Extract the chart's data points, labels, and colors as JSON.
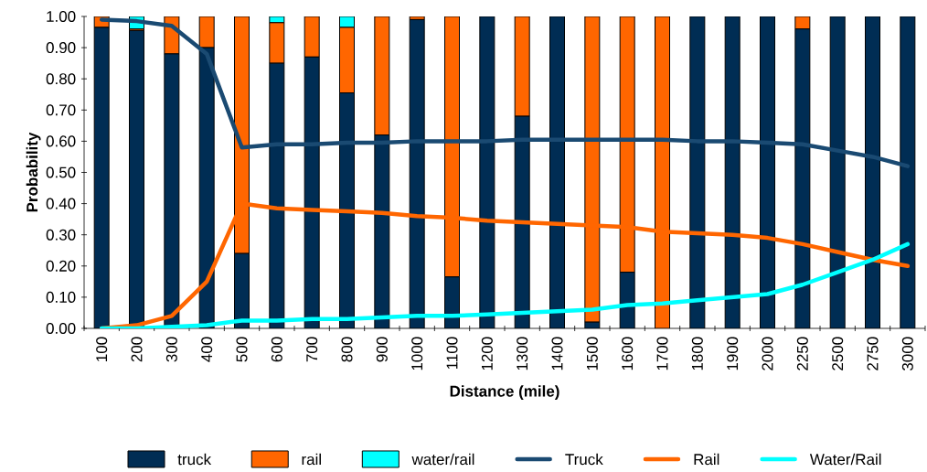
{
  "chart_data": {
    "type": "bar",
    "stacked": true,
    "xlabel": "Distance (mile)",
    "ylabel": "Probability",
    "categories": [
      "100",
      "200",
      "300",
      "400",
      "500",
      "600",
      "700",
      "800",
      "900",
      "1000",
      "1100",
      "1200",
      "1300",
      "1400",
      "1500",
      "1600",
      "1700",
      "1800",
      "1900",
      "2000",
      "2250",
      "2500",
      "2750",
      "3000"
    ],
    "series": [
      {
        "name": "truck",
        "color": "#002d54",
        "values": [
          0.965,
          0.955,
          0.88,
          0.9,
          0.24,
          0.85,
          0.87,
          0.755,
          0.62,
          0.99,
          0.165,
          1.0,
          0.68,
          1.0,
          0.02,
          0.18,
          0.0,
          1.0,
          1.0,
          1.0,
          0.96,
          1.0,
          1.0,
          1.0
        ]
      },
      {
        "name": "rail",
        "color": "#ff6600",
        "values": [
          0.035,
          0.005,
          0.12,
          0.1,
          0.76,
          0.13,
          0.13,
          0.21,
          0.38,
          0.01,
          0.835,
          0.0,
          0.32,
          0.0,
          0.98,
          0.82,
          1.0,
          0.0,
          0.0,
          0.0,
          0.04,
          0.0,
          0.0,
          0.0
        ]
      },
      {
        "name": "water/rail",
        "color": "#00ffff",
        "values": [
          0.0,
          0.04,
          0.0,
          0.0,
          0.0,
          0.02,
          0.0,
          0.035,
          0.0,
          0.0,
          0.0,
          0.0,
          0.0,
          0.0,
          0.0,
          0.0,
          0.0,
          0.0,
          0.0,
          0.0,
          0.0,
          0.0,
          0.0,
          0.0
        ]
      },
      {
        "name": "Truck",
        "type": "line",
        "color": "#1a4a72",
        "values": [
          0.99,
          0.985,
          0.97,
          0.88,
          0.58,
          0.59,
          0.59,
          0.595,
          0.595,
          0.6,
          0.6,
          0.6,
          0.605,
          0.605,
          0.605,
          0.605,
          0.605,
          0.6,
          0.6,
          0.595,
          0.59,
          0.57,
          0.55,
          0.52
        ]
      },
      {
        "name": "Rail",
        "type": "line",
        "color": "#ff6600",
        "values": [
          0.0,
          0.01,
          0.04,
          0.15,
          0.4,
          0.385,
          0.38,
          0.375,
          0.37,
          0.36,
          0.355,
          0.345,
          0.34,
          0.335,
          0.33,
          0.325,
          0.31,
          0.305,
          0.3,
          0.29,
          0.27,
          0.245,
          0.22,
          0.2
        ]
      },
      {
        "name": "Water/Rail",
        "type": "line",
        "color": "#00ffff",
        "values": [
          0.0,
          0.0,
          0.005,
          0.01,
          0.025,
          0.025,
          0.03,
          0.03,
          0.035,
          0.04,
          0.04,
          0.045,
          0.05,
          0.055,
          0.06,
          0.075,
          0.08,
          0.09,
          0.1,
          0.11,
          0.14,
          0.18,
          0.22,
          0.27
        ]
      }
    ],
    "ylim": [
      0,
      1
    ],
    "yticks": [
      {
        "value": 0,
        "label": "0.00"
      },
      {
        "value": 0.1,
        "label": "0.10"
      },
      {
        "value": 0.2,
        "label": "0.20"
      },
      {
        "value": 0.3,
        "label": "0.30"
      },
      {
        "value": 0.4,
        "label": "0.40"
      },
      {
        "value": 0.5,
        "label": "0.50"
      },
      {
        "value": 0.6,
        "label": "0.60"
      },
      {
        "value": 0.7,
        "label": "0.70"
      },
      {
        "value": 0.8,
        "label": "0.80"
      },
      {
        "value": 0.9,
        "label": "0.90"
      },
      {
        "value": 1,
        "label": "1.00"
      }
    ],
    "legend": "bottom"
  }
}
